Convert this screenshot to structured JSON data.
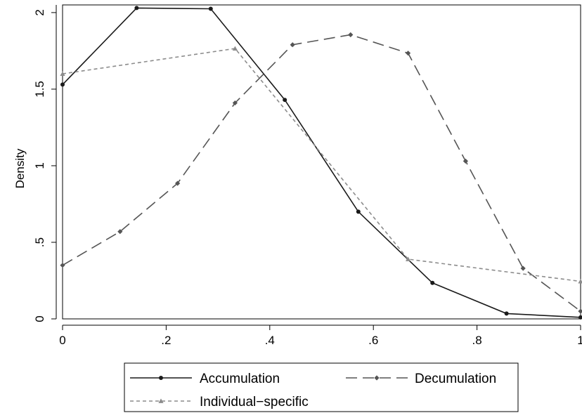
{
  "chart_data": {
    "type": "line",
    "title": "",
    "xlabel": "",
    "ylabel": "Density",
    "xlim": [
      0,
      1
    ],
    "ylim": [
      0,
      2.05
    ],
    "xticks": [
      0,
      0.2,
      0.4,
      0.6,
      0.8,
      1
    ],
    "xtick_labels": [
      "0",
      ".2",
      ".4",
      ".6",
      ".8",
      "1"
    ],
    "yticks": [
      0,
      0.5,
      1,
      1.5,
      2
    ],
    "ytick_labels": [
      "0",
      ".5",
      "1",
      "1.5",
      "2"
    ],
    "grid": false,
    "legend_position": "bottom",
    "series": [
      {
        "name": "Accumulation",
        "style": "solid",
        "marker": "circle",
        "color": "#1a1a1a",
        "x": [
          0,
          0.143,
          0.286,
          0.429,
          0.571,
          0.714,
          0.857,
          1.0
        ],
        "y": [
          1.53,
          2.03,
          2.025,
          1.43,
          0.7,
          0.235,
          0.035,
          0.01
        ]
      },
      {
        "name": "Decumulation",
        "style": "dashed",
        "marker": "diamond",
        "color": "#555555",
        "x": [
          0,
          0.111,
          0.222,
          0.333,
          0.444,
          0.556,
          0.667,
          0.778,
          0.889,
          1.0
        ],
        "y": [
          0.35,
          0.57,
          0.885,
          1.41,
          1.79,
          1.855,
          1.735,
          1.03,
          0.33,
          0.05
        ]
      },
      {
        "name": "Individual−specific",
        "style": "dotted",
        "marker": "triangle",
        "color": "#8c8c8c",
        "x": [
          0,
          0.333,
          0.667,
          1.0
        ],
        "y": [
          1.6,
          1.765,
          0.39,
          0.245
        ]
      }
    ]
  }
}
